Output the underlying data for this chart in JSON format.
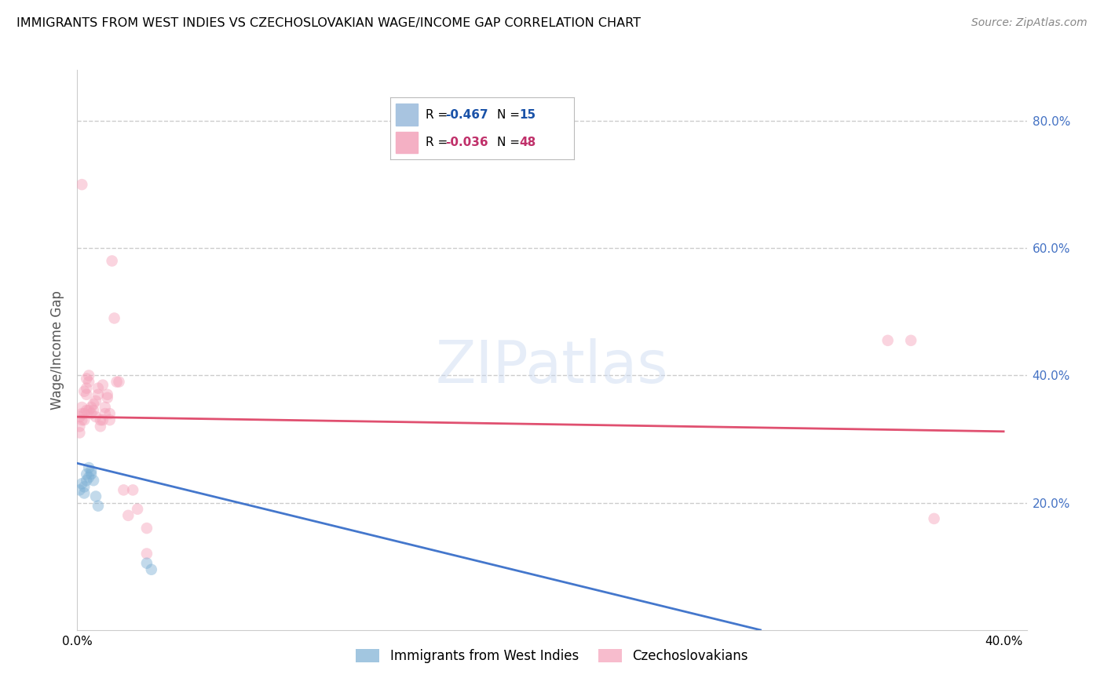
{
  "title": "IMMIGRANTS FROM WEST INDIES VS CZECHOSLOVAKIAN WAGE/INCOME GAP CORRELATION CHART",
  "source": "Source: ZipAtlas.com",
  "ylabel": "Wage/Income Gap",
  "background_color": "#ffffff",
  "watermark": "ZIPatlas",
  "blue_scatter_x": [
    0.001,
    0.002,
    0.003,
    0.003,
    0.004,
    0.004,
    0.005,
    0.005,
    0.006,
    0.006,
    0.007,
    0.008,
    0.009,
    0.03,
    0.032
  ],
  "blue_scatter_y": [
    0.22,
    0.23,
    0.215,
    0.225,
    0.235,
    0.245,
    0.24,
    0.255,
    0.25,
    0.245,
    0.235,
    0.21,
    0.195,
    0.105,
    0.095
  ],
  "pink_scatter_x": [
    0.001,
    0.001,
    0.001,
    0.002,
    0.002,
    0.002,
    0.002,
    0.003,
    0.003,
    0.003,
    0.004,
    0.004,
    0.004,
    0.004,
    0.005,
    0.005,
    0.005,
    0.006,
    0.006,
    0.007,
    0.007,
    0.008,
    0.008,
    0.009,
    0.009,
    0.01,
    0.01,
    0.011,
    0.011,
    0.012,
    0.012,
    0.013,
    0.013,
    0.014,
    0.014,
    0.015,
    0.016,
    0.017,
    0.018,
    0.02,
    0.022,
    0.024,
    0.026,
    0.03,
    0.03,
    0.35,
    0.36,
    0.37
  ],
  "pink_scatter_y": [
    0.335,
    0.32,
    0.31,
    0.35,
    0.34,
    0.33,
    0.7,
    0.34,
    0.33,
    0.375,
    0.38,
    0.37,
    0.395,
    0.345,
    0.4,
    0.39,
    0.345,
    0.35,
    0.34,
    0.355,
    0.345,
    0.36,
    0.335,
    0.38,
    0.37,
    0.33,
    0.32,
    0.385,
    0.33,
    0.34,
    0.35,
    0.365,
    0.37,
    0.33,
    0.34,
    0.58,
    0.49,
    0.39,
    0.39,
    0.22,
    0.18,
    0.22,
    0.19,
    0.16,
    0.12,
    0.455,
    0.455,
    0.175
  ],
  "blue_line_x": [
    0.0,
    0.295
  ],
  "blue_line_y": [
    0.262,
    0.0
  ],
  "pink_line_x": [
    0.0,
    0.4
  ],
  "pink_line_y": [
    0.335,
    0.312
  ],
  "legend_label1": "Immigrants from West Indies",
  "legend_label2": "Czechoslovakians",
  "scatter_size": 110,
  "scatter_alpha": 0.45,
  "xlim": [
    0.0,
    0.41
  ],
  "ylim": [
    0.0,
    0.88
  ],
  "grid_color": "#cccccc",
  "grid_style": "--",
  "blue_color": "#7bafd4",
  "pink_color": "#f4a0b8",
  "blue_line_color": "#4477cc",
  "pink_line_color": "#e05070",
  "ytick_right_vals": [
    0.2,
    0.4,
    0.6,
    0.8
  ],
  "ytick_right_labels": [
    "20.0%",
    "40.0%",
    "60.0%",
    "80.0%"
  ],
  "xtick_vals": [
    0.0,
    0.1,
    0.2,
    0.3,
    0.4
  ],
  "xtick_labels": [
    "0.0%",
    "",
    "",
    "",
    "40.0%"
  ]
}
